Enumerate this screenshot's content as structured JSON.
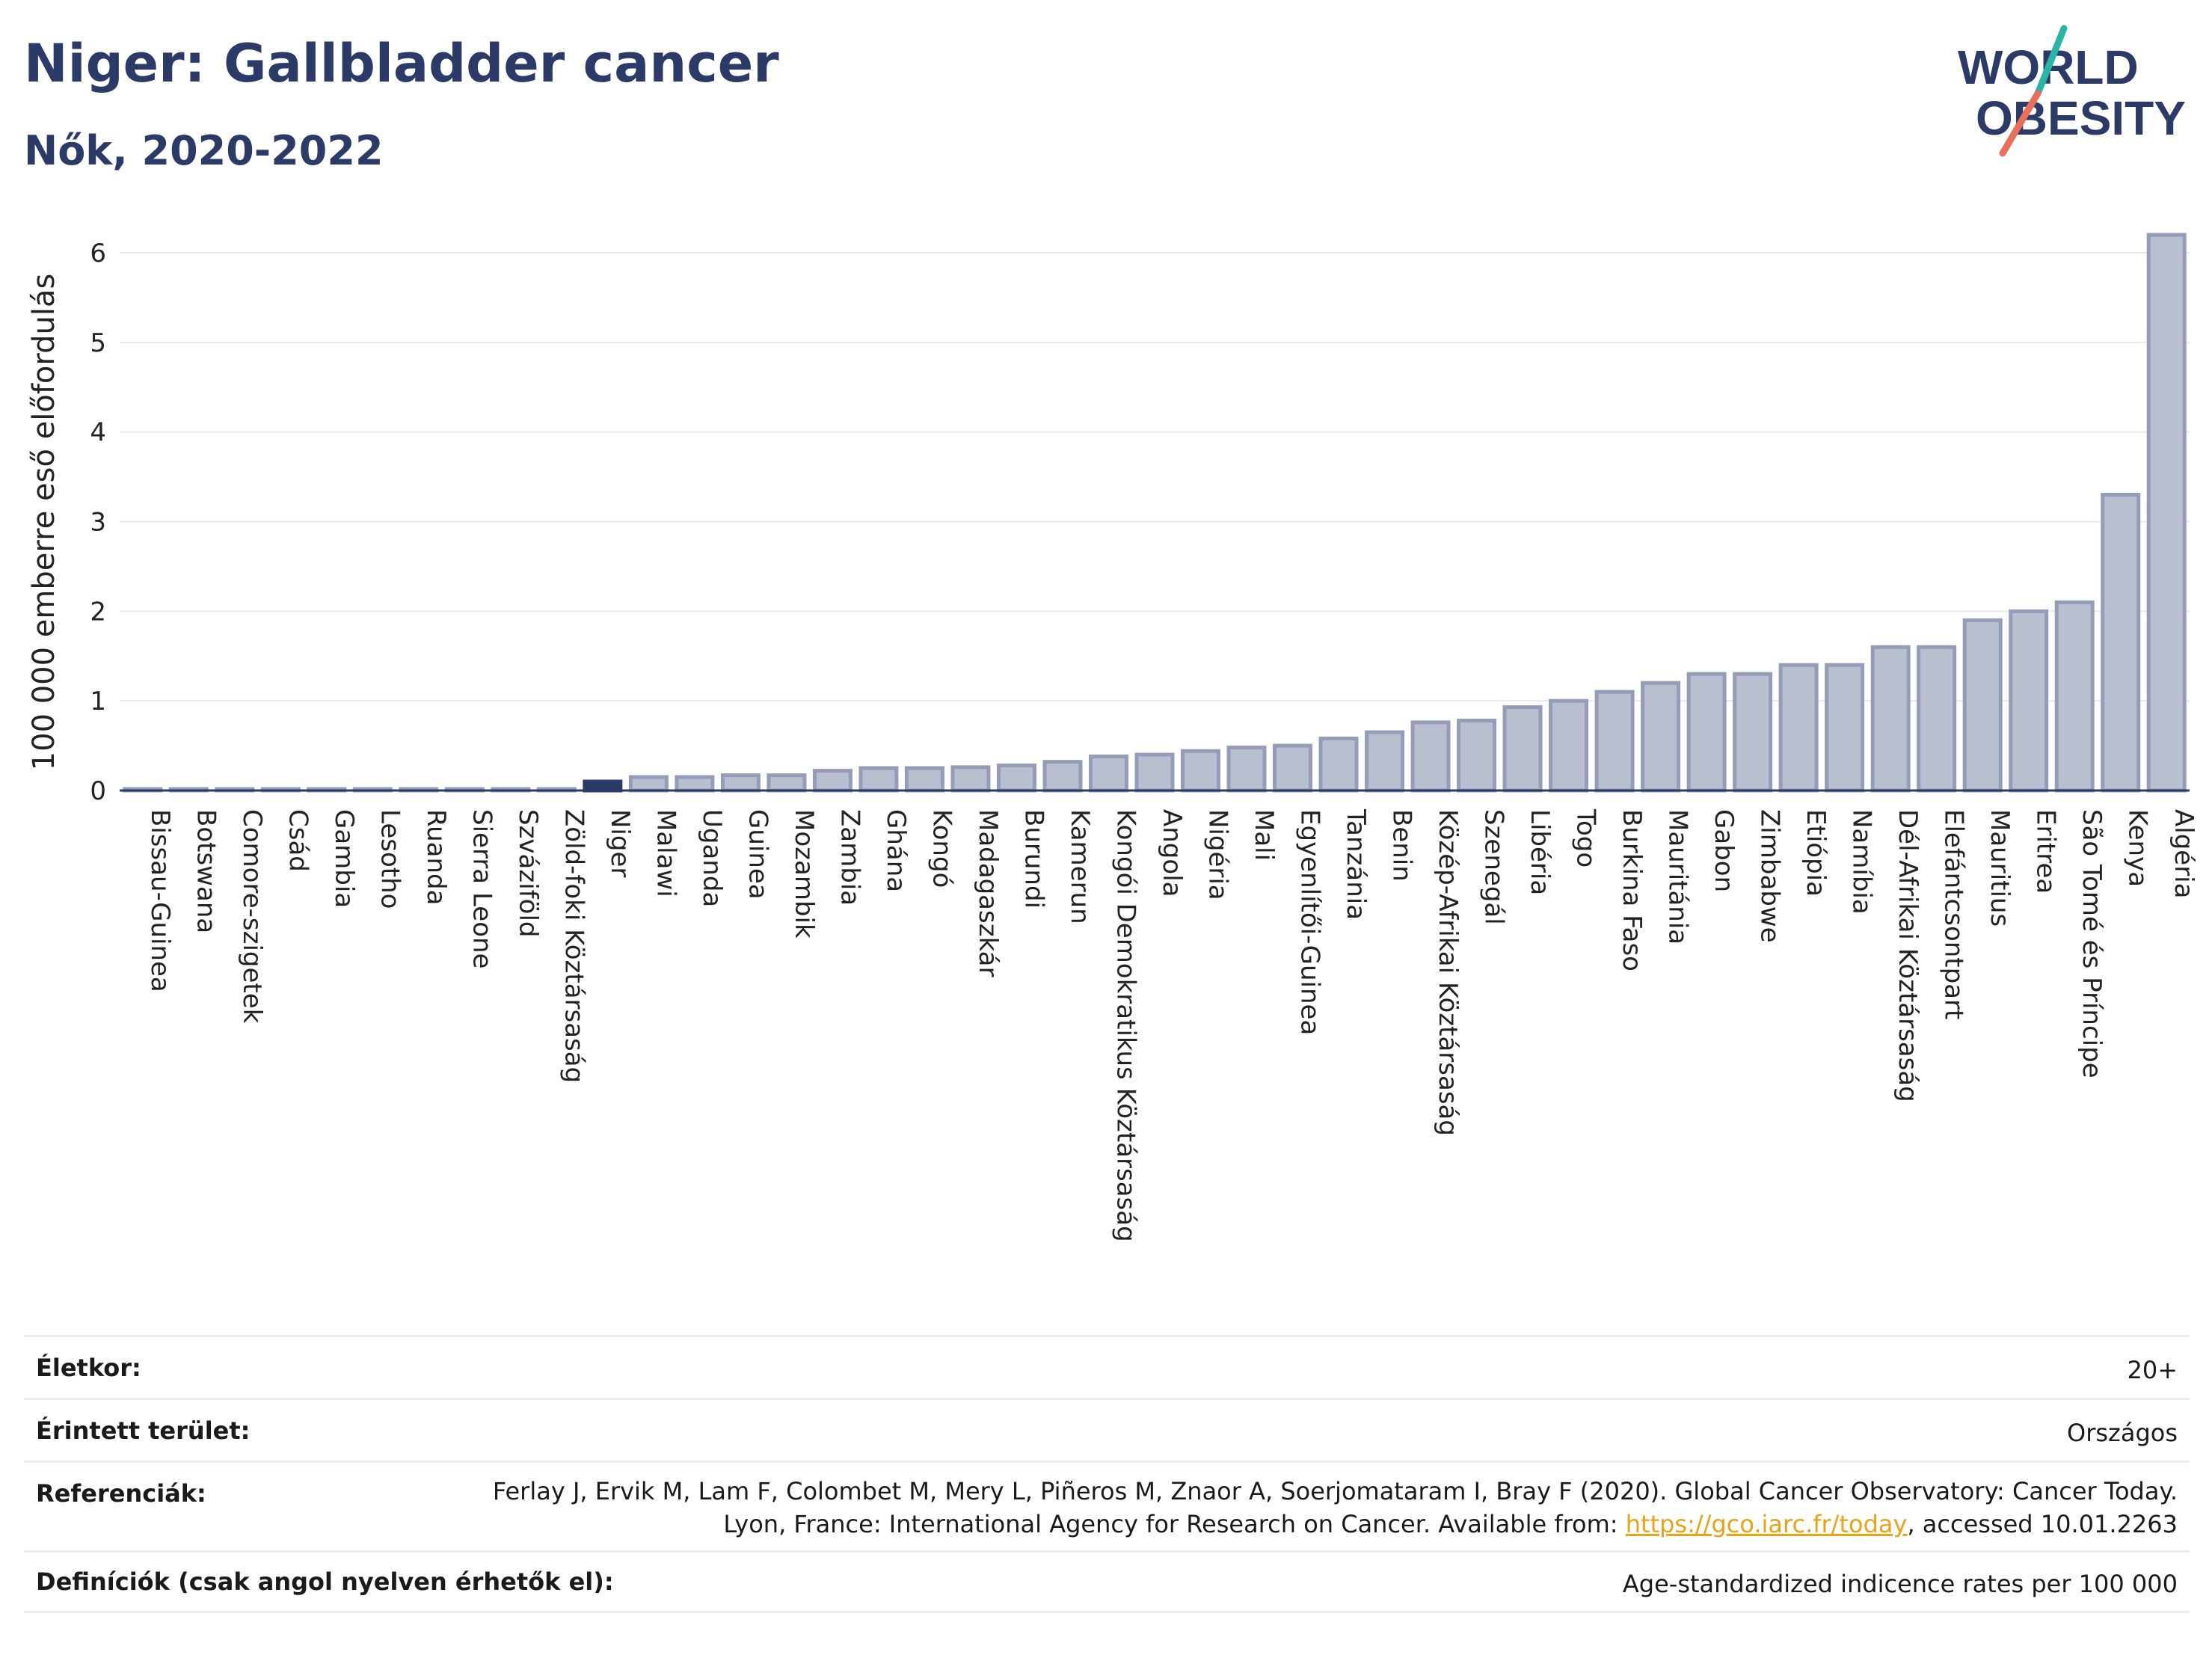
{
  "header": {
    "title": "Niger: Gallbladder cancer",
    "subtitle": "Nők, 2020-2022"
  },
  "logo": {
    "line1": "WORLD",
    "line2": "OBESITY"
  },
  "colors": {
    "bar": "#b9bfcf",
    "bar_stroke": "#959cb8",
    "highlight": "#2b3a67",
    "title": "#2b3a67",
    "link": "#e8a317"
  },
  "chart_data": {
    "type": "bar",
    "ylabel": "100 000 emberre eső előfordulás",
    "ylim": [
      0,
      6.4
    ],
    "yticks": [
      0,
      1,
      2,
      3,
      4,
      5,
      6
    ],
    "grid": true,
    "highlight": "Niger",
    "categories": [
      "Bissau-Guinea",
      "Botswana",
      "Comore-szigetek",
      "Csád",
      "Gambia",
      "Lesotho",
      "Ruanda",
      "Sierra Leone",
      "Szváziföld",
      "Zöld-foki Köztársaság",
      "Niger",
      "Malawi",
      "Uganda",
      "Guinea",
      "Mozambik",
      "Zambia",
      "Ghána",
      "Kongó",
      "Madagaszkár",
      "Burundi",
      "Kamerun",
      "Kongói Demokratikus Köztársaság",
      "Angola",
      "Nigéria",
      "Mali",
      "Egyenlítői-Guinea",
      "Tanzánia",
      "Benin",
      "Közép-Afrikai Köztársaság",
      "Szenegál",
      "Libéria",
      "Togo",
      "Burkina Faso",
      "Mauritánia",
      "Gabon",
      "Zimbabwe",
      "Etiópia",
      "Namíbia",
      "Dél-Afrikai Köztársaság",
      "Elefántcsontpart",
      "Mauritius",
      "Eritrea",
      "São Tomé és Príncipe",
      "Kenya",
      "Algéria"
    ],
    "values": [
      0.01,
      0.01,
      0.01,
      0.01,
      0.01,
      0.01,
      0.01,
      0.01,
      0.01,
      0.01,
      0.1,
      0.15,
      0.15,
      0.17,
      0.17,
      0.22,
      0.25,
      0.25,
      0.26,
      0.28,
      0.32,
      0.38,
      0.4,
      0.44,
      0.48,
      0.5,
      0.58,
      0.65,
      0.76,
      0.78,
      0.93,
      1.0,
      1.1,
      1.2,
      1.3,
      1.3,
      1.4,
      1.4,
      1.6,
      1.6,
      1.9,
      2.0,
      2.1,
      3.3,
      6.2
    ]
  },
  "info": {
    "age_label": "Életkor:",
    "age_value": "20+",
    "area_label": "Érintett terület:",
    "area_value": "Országos",
    "ref_label": "Referenciák:",
    "ref_text_1": "Ferlay J, Ervik M, Lam F, Colombet M, Mery L, Piñeros M, Znaor A, Soerjomataram I, Bray F (2020). Global Cancer Observatory: Cancer Today. Lyon, France: International Agency for Research on Cancer. Available from: ",
    "ref_link": "https://gco.iarc.fr/today",
    "ref_text_2": ", accessed 10.01.2263",
    "def_label": "Definíciók (csak angol nyelven érhetők el):",
    "def_value": "Age-standardized indicence rates per 100 000"
  }
}
